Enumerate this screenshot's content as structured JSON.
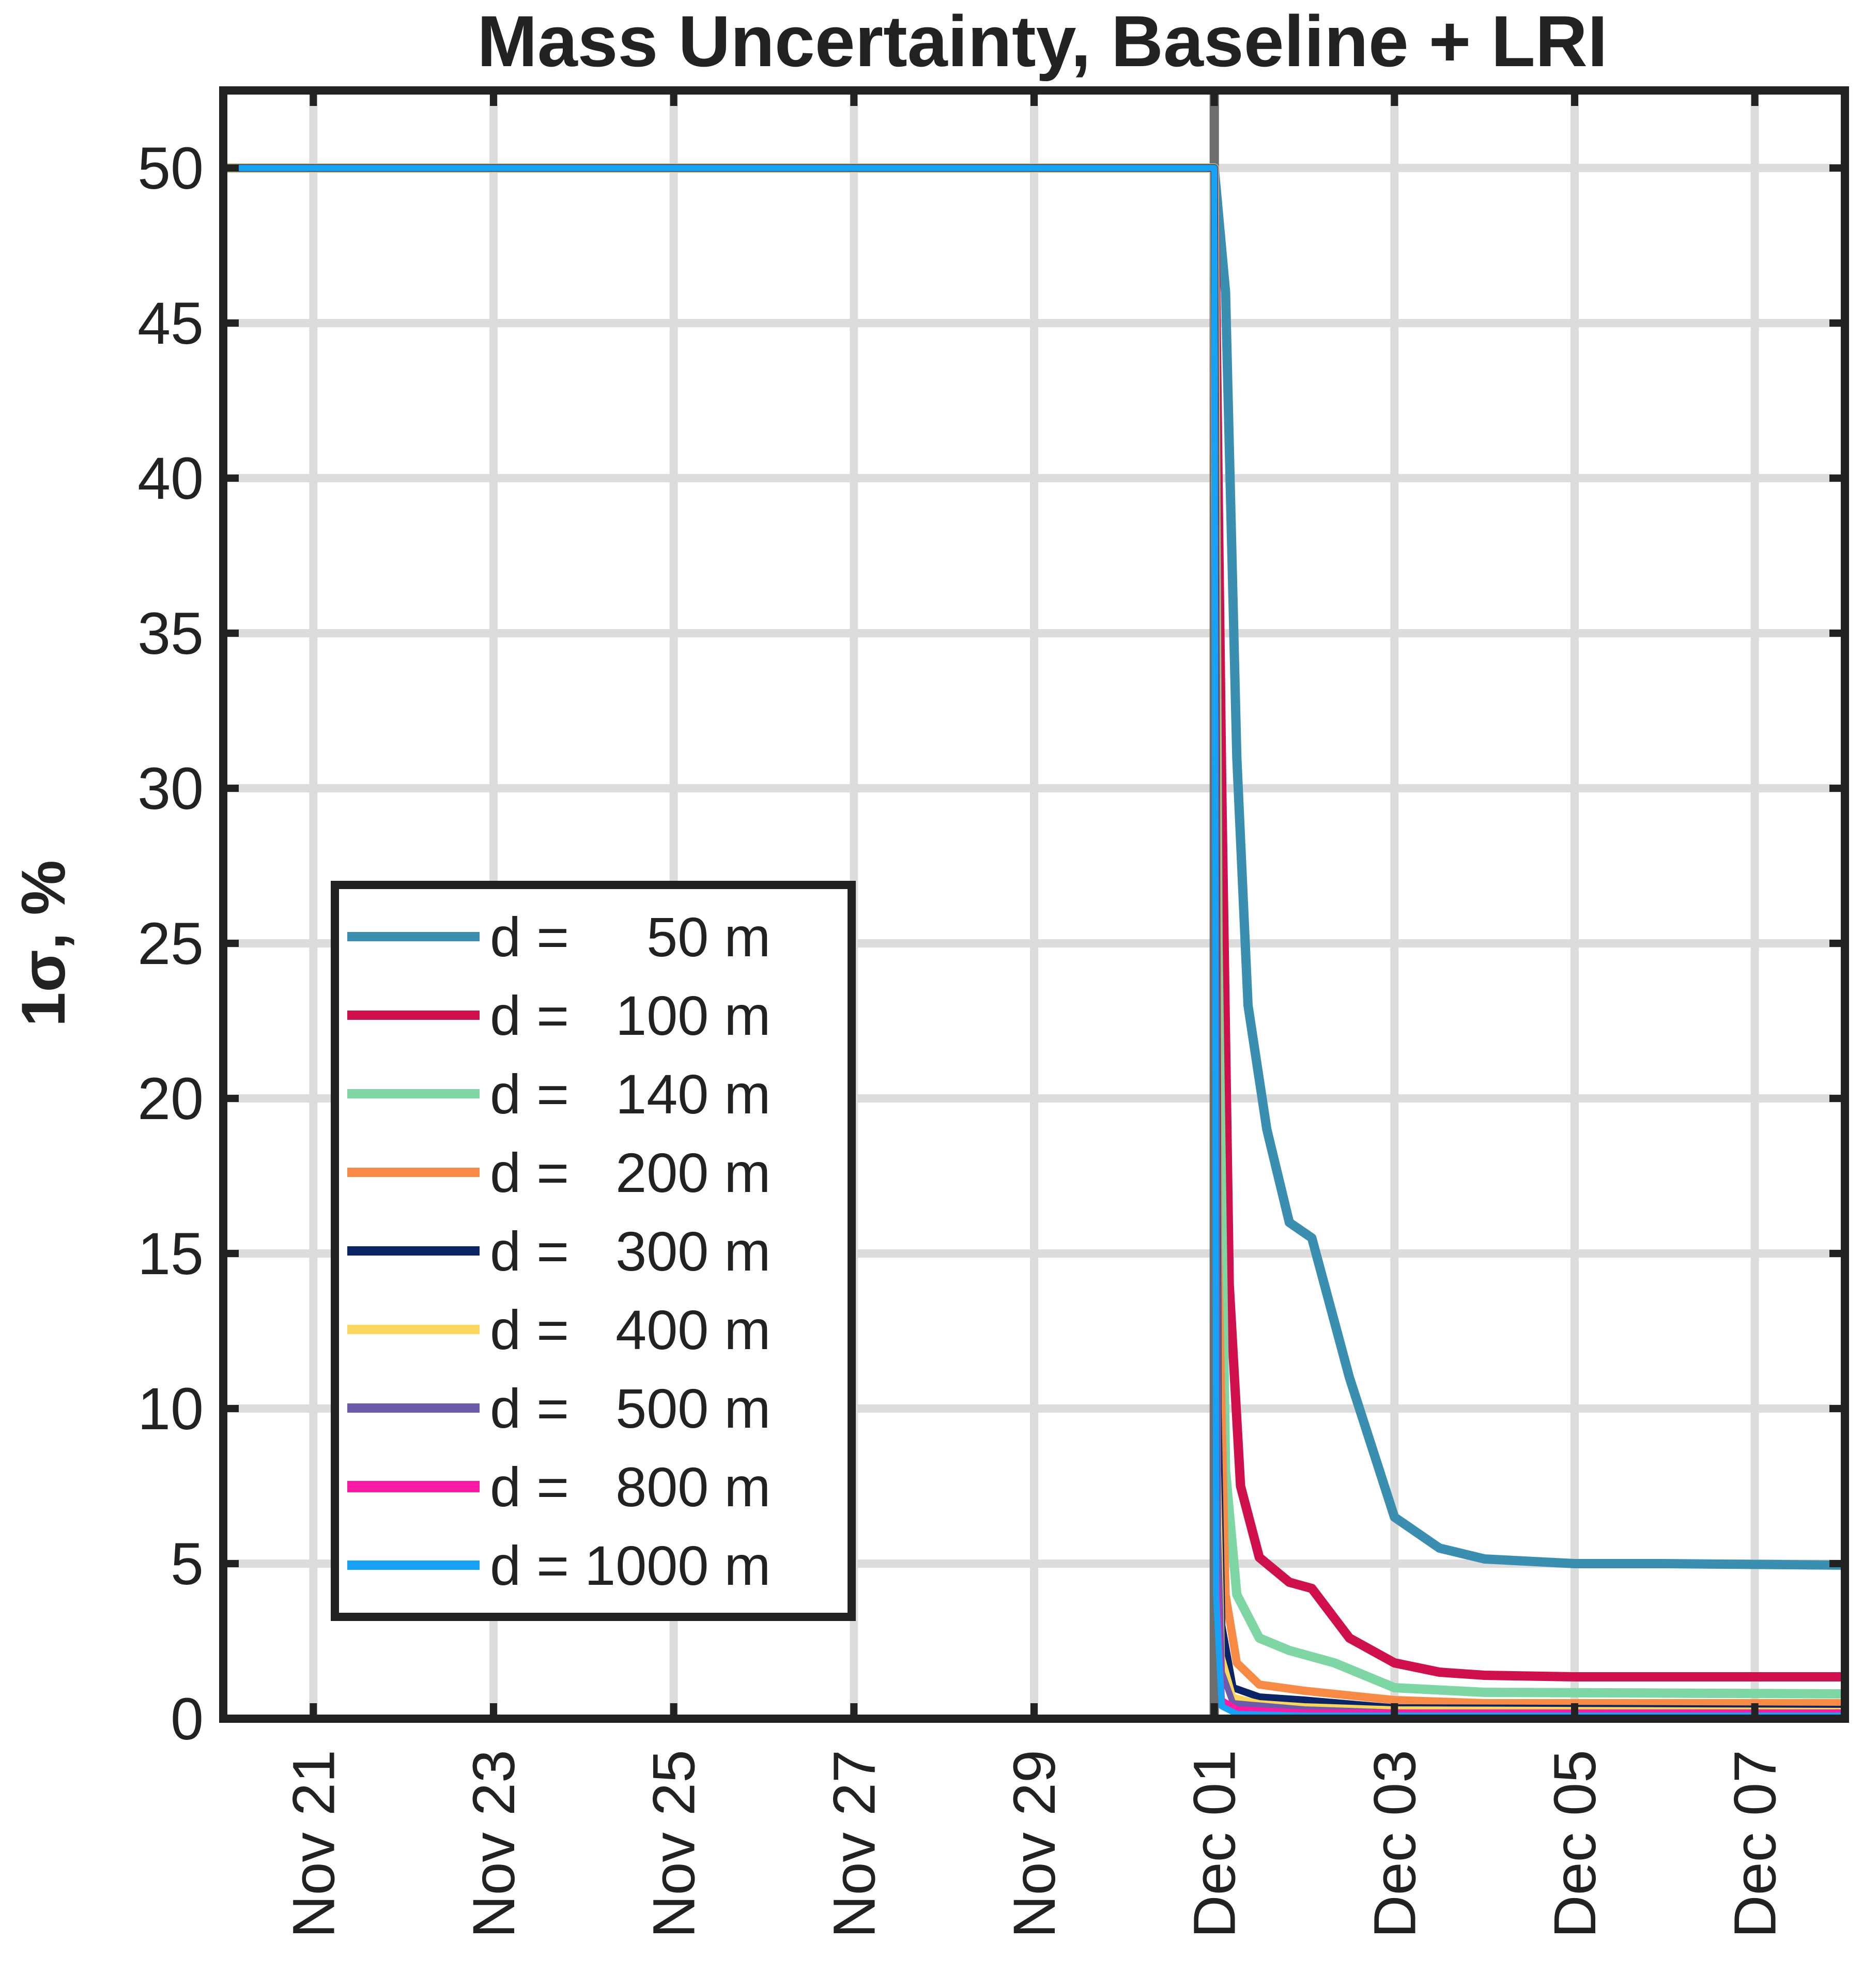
{
  "chart_data": {
    "type": "line",
    "title": "Mass Uncertainty, Baseline + LRI",
    "ylabel": "1σ, %",
    "xlabel": "",
    "ylim": [
      0,
      52.5
    ],
    "xlim": [
      "2022-11-20",
      "2022-12-08"
    ],
    "yticks": [
      "0",
      "5",
      "10",
      "15",
      "20",
      "25",
      "30",
      "35",
      "40",
      "45",
      "50"
    ],
    "xticks": [
      {
        "date": "2022-11-21",
        "label": "Nov 21"
      },
      {
        "date": "2022-11-23",
        "label": "Nov 23"
      },
      {
        "date": "2022-11-25",
        "label": "Nov 25"
      },
      {
        "date": "2022-11-27",
        "label": "Nov 27"
      },
      {
        "date": "2022-11-29",
        "label": "Nov 29"
      },
      {
        "date": "2022-12-01",
        "label": "Dec 01"
      },
      {
        "date": "2022-12-03",
        "label": "Dec 03"
      },
      {
        "date": "2022-12-05",
        "label": "Dec 05"
      },
      {
        "date": "2022-12-07",
        "label": "Dec 07"
      }
    ],
    "grid": true,
    "event_marker": "2022-12-01",
    "legend_position": "lower-left",
    "series": [
      {
        "name": "d =     50 m",
        "color": "#3a8fb0",
        "points": [
          [
            "2022-11-20",
            50
          ],
          [
            "2022-12-01",
            50
          ],
          [
            "2022-12-01 03:00",
            46
          ],
          [
            "2022-12-01 06:00",
            31
          ],
          [
            "2022-12-01 09:00",
            23
          ],
          [
            "2022-12-01 14:00",
            19
          ],
          [
            "2022-12-01 20:00",
            16
          ],
          [
            "2022-12-02 02:00",
            15.5
          ],
          [
            "2022-12-02 12:00",
            11
          ],
          [
            "2022-12-03",
            6.5
          ],
          [
            "2022-12-03 12:00",
            5.5
          ],
          [
            "2022-12-04",
            5.15
          ],
          [
            "2022-12-05",
            5.0
          ],
          [
            "2022-12-06",
            5.0
          ],
          [
            "2022-12-08",
            4.95
          ]
        ]
      },
      {
        "name": "d =   100 m",
        "color": "#d0104c",
        "points": [
          [
            "2022-11-20",
            50
          ],
          [
            "2022-12-01",
            50
          ],
          [
            "2022-12-01 02:00",
            30
          ],
          [
            "2022-12-01 04:00",
            14
          ],
          [
            "2022-12-01 07:00",
            7.5
          ],
          [
            "2022-12-01 12:00",
            5.2
          ],
          [
            "2022-12-01 20:00",
            4.4
          ],
          [
            "2022-12-02 02:00",
            4.2
          ],
          [
            "2022-12-02 12:00",
            2.6
          ],
          [
            "2022-12-03",
            1.8
          ],
          [
            "2022-12-03 12:00",
            1.5
          ],
          [
            "2022-12-04",
            1.4
          ],
          [
            "2022-12-05",
            1.35
          ],
          [
            "2022-12-08",
            1.35
          ]
        ]
      },
      {
        "name": "d =   140 m",
        "color": "#7dd6a4",
        "points": [
          [
            "2022-11-20",
            50
          ],
          [
            "2022-12-01",
            50
          ],
          [
            "2022-12-01 01:00",
            25
          ],
          [
            "2022-12-01 03:00",
            8
          ],
          [
            "2022-12-01 06:00",
            4
          ],
          [
            "2022-12-01 12:00",
            2.6
          ],
          [
            "2022-12-01 20:00",
            2.2
          ],
          [
            "2022-12-02 08:00",
            1.8
          ],
          [
            "2022-12-03",
            1.0
          ],
          [
            "2022-12-04",
            0.85
          ],
          [
            "2022-12-08",
            0.8
          ]
        ]
      },
      {
        "name": "d =   200 m",
        "color": "#f78a45",
        "points": [
          [
            "2022-11-20",
            50
          ],
          [
            "2022-12-01",
            50
          ],
          [
            "2022-12-01 01:00",
            15
          ],
          [
            "2022-12-01 03:00",
            4
          ],
          [
            "2022-12-01 06:00",
            1.8
          ],
          [
            "2022-12-01 12:00",
            1.1
          ],
          [
            "2022-12-02",
            0.9
          ],
          [
            "2022-12-03",
            0.6
          ],
          [
            "2022-12-04",
            0.5
          ],
          [
            "2022-12-08",
            0.5
          ]
        ]
      },
      {
        "name": "d =   300 m",
        "color": "#0a2466",
        "points": [
          [
            "2022-11-20",
            50
          ],
          [
            "2022-12-01",
            50
          ],
          [
            "2022-12-01 01:00",
            10
          ],
          [
            "2022-12-01 02:00",
            3
          ],
          [
            "2022-12-01 05:00",
            1.0
          ],
          [
            "2022-12-01 12:00",
            0.7
          ],
          [
            "2022-12-02",
            0.6
          ],
          [
            "2022-12-03",
            0.35
          ],
          [
            "2022-12-08",
            0.3
          ]
        ]
      },
      {
        "name": "d =   400 m",
        "color": "#fad65a",
        "points": [
          [
            "2022-11-20",
            50
          ],
          [
            "2022-12-01",
            50
          ],
          [
            "2022-12-01 01:00",
            8
          ],
          [
            "2022-12-01 02:00",
            2
          ],
          [
            "2022-12-01 05:00",
            0.7
          ],
          [
            "2022-12-01 12:00",
            0.5
          ],
          [
            "2022-12-02",
            0.4
          ],
          [
            "2022-12-03",
            0.3
          ],
          [
            "2022-12-08",
            0.25
          ]
        ]
      },
      {
        "name": "d =   500 m",
        "color": "#6b5ba8",
        "points": [
          [
            "2022-11-20",
            50
          ],
          [
            "2022-12-01",
            50
          ],
          [
            "2022-12-01 01:00",
            6
          ],
          [
            "2022-12-01 02:00",
            1.5
          ],
          [
            "2022-12-01 05:00",
            0.5
          ],
          [
            "2022-12-02",
            0.3
          ],
          [
            "2022-12-03",
            0.2
          ],
          [
            "2022-12-08",
            0.2
          ]
        ]
      },
      {
        "name": "d =   800 m",
        "color": "#ff1aa6",
        "points": [
          [
            "2022-11-20",
            50
          ],
          [
            "2022-12-01",
            50
          ],
          [
            "2022-12-01 00:30",
            5
          ],
          [
            "2022-12-01 02:00",
            0.6
          ],
          [
            "2022-12-01 06:00",
            0.3
          ],
          [
            "2022-12-02",
            0.2
          ],
          [
            "2022-12-08",
            0.2
          ]
        ]
      },
      {
        "name": "d = 1000 m",
        "color": "#16a3f5",
        "points": [
          [
            "2022-11-20",
            50
          ],
          [
            "2022-12-01",
            50
          ],
          [
            "2022-12-01 00:30",
            4
          ],
          [
            "2022-12-01 02:00",
            0.4
          ],
          [
            "2022-12-01 06:00",
            0.15
          ],
          [
            "2022-12-02",
            0.1
          ],
          [
            "2022-12-08",
            0.1
          ]
        ]
      }
    ]
  }
}
